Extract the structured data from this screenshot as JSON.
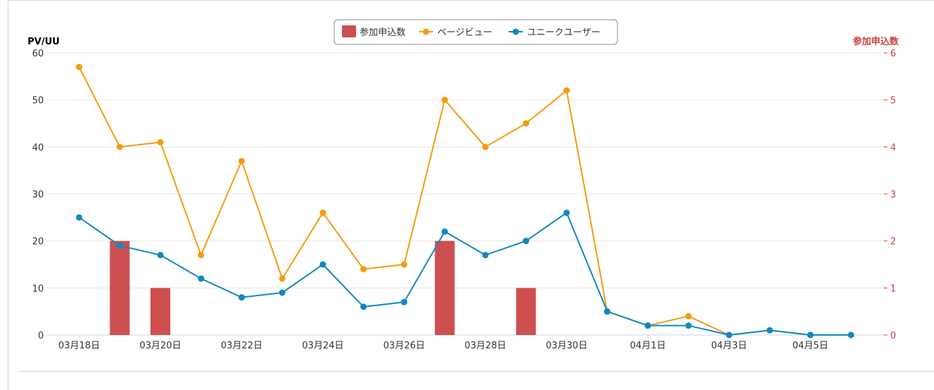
{
  "colors": {
    "pv": "#f39c12",
    "uu": "#1188c2",
    "apps": "#cd4f4f",
    "right_axis": "#c94242",
    "grid": "#e6e6e6",
    "axis_text": "#333333"
  },
  "chart_data": {
    "type": "line",
    "title": "",
    "left_axis": {
      "label": "PV/UU",
      "range": [
        0,
        60
      ],
      "ticks": [
        "0",
        "10",
        "20",
        "30",
        "40",
        "50",
        "60"
      ]
    },
    "right_axis": {
      "label": "参加申込数",
      "range": [
        0,
        6
      ],
      "ticks": [
        "0",
        "1",
        "2",
        "3",
        "4",
        "5",
        "6"
      ]
    },
    "x_tick_labels": [
      "03月18日",
      "03月20日",
      "03月22日",
      "03月24日",
      "03月26日",
      "03月28日",
      "03月30日",
      "04月1日",
      "04月3日",
      "04月5日"
    ],
    "x": [
      "03-18",
      "03-19",
      "03-20",
      "03-21",
      "03-22",
      "03-23",
      "03-24",
      "03-25",
      "03-26",
      "03-27",
      "03-28",
      "03-29",
      "03-30",
      "03-31",
      "04-01",
      "04-02",
      "04-03",
      "04-04",
      "04-05",
      "04-06"
    ],
    "legend": {
      "position": "top-center",
      "items": [
        "参加申込数",
        "ページビュー",
        "ユニークユーザー"
      ]
    },
    "series": [
      {
        "name": "参加申込数",
        "type": "bar",
        "axis": "right",
        "values": [
          0,
          2,
          1,
          0,
          0,
          0,
          0,
          0,
          0,
          2,
          0,
          1,
          0,
          0,
          0,
          0,
          0,
          0,
          0,
          0
        ]
      },
      {
        "name": "ページビュー",
        "type": "line",
        "axis": "left",
        "values": [
          57,
          40,
          41,
          17,
          37,
          12,
          26,
          14,
          15,
          50,
          40,
          45,
          52,
          5,
          2,
          4,
          0,
          1,
          0,
          0
        ]
      },
      {
        "name": "ユニークユーザー",
        "type": "line",
        "axis": "left",
        "values": [
          25,
          19,
          17,
          12,
          8,
          9,
          15,
          6,
          7,
          22,
          17,
          20,
          26,
          5,
          2,
          2,
          0,
          1,
          0,
          0
        ]
      }
    ],
    "grid": true
  }
}
